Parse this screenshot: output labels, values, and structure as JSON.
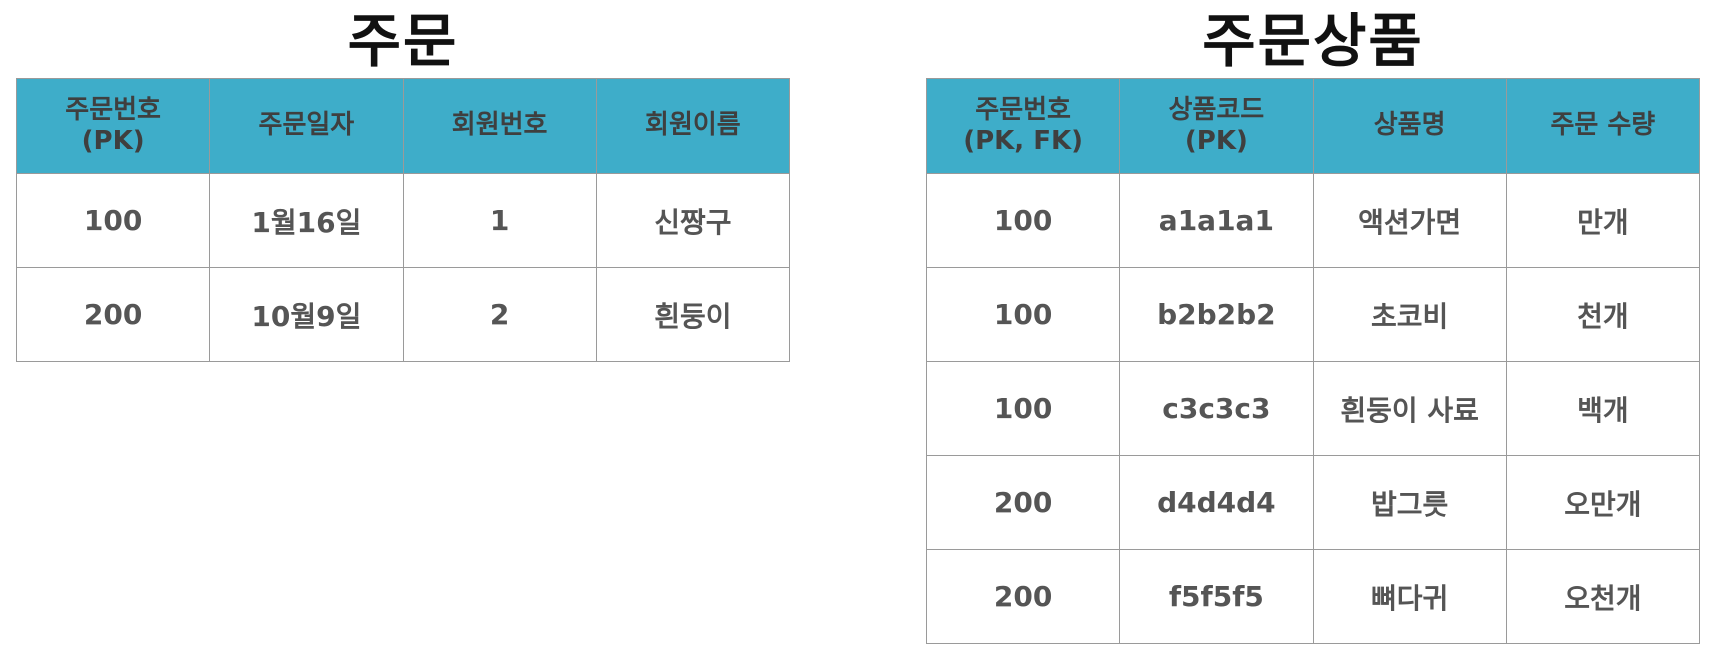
{
  "orders": {
    "title": "주문",
    "headers": [
      "주문번호\n(PK)",
      "주문일자",
      "회원번호",
      "회원이름"
    ],
    "rows": [
      [
        "100",
        "1월16일",
        "1",
        "신짱구"
      ],
      [
        "200",
        "10월9일",
        "2",
        "흰둥이"
      ]
    ]
  },
  "order_items": {
    "title": "주문상품",
    "headers": [
      "주문번호\n(PK, FK)",
      "상품코드\n(PK)",
      "상품명",
      "주문 수량"
    ],
    "rows": [
      [
        "100",
        "a1a1a1",
        "액션가면",
        "만개"
      ],
      [
        "100",
        "b2b2b2",
        "초코비",
        "천개"
      ],
      [
        "100",
        "c3c3c3",
        "흰둥이 사료",
        "백개"
      ],
      [
        "200",
        "d4d4d4",
        "밥그릇",
        "오만개"
      ],
      [
        "200",
        "f5f5f5",
        "뼈다귀",
        "오천개"
      ]
    ]
  },
  "colors": {
    "header_bg": "#3eadc9",
    "header_text": "#3f3f3f",
    "cell_text": "#555555",
    "border": "#9a9a9a"
  }
}
